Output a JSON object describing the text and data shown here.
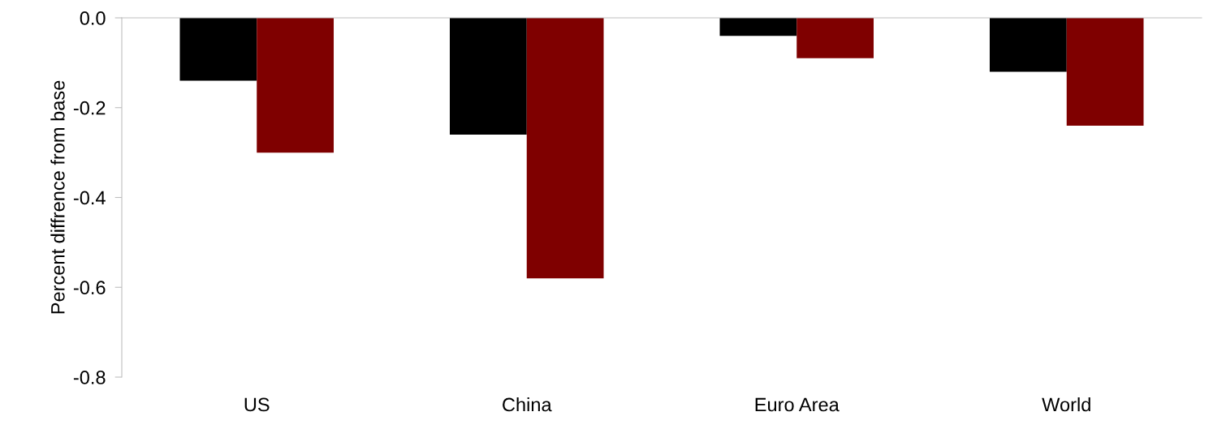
{
  "chart_data": {
    "type": "bar",
    "ylabel": "Percent diffrence from base",
    "categories": [
      "US",
      "China",
      "Euro Area",
      "World"
    ],
    "series": [
      {
        "color": "#000000",
        "values": [
          -0.14,
          -0.26,
          -0.04,
          -0.12
        ]
      },
      {
        "color": "#7f0000",
        "values": [
          -0.3,
          -0.58,
          -0.09,
          -0.24
        ]
      }
    ],
    "ylim": [
      -0.8,
      0
    ],
    "yticks": [
      {
        "value": 0,
        "label": "0.0"
      },
      {
        "value": -0.2,
        "label": "-0.2"
      },
      {
        "value": -0.4,
        "label": "-0.4"
      },
      {
        "value": -0.6,
        "label": "-0.6"
      },
      {
        "value": -0.8,
        "label": "-0.8"
      }
    ],
    "grid": false,
    "legend": false
  }
}
